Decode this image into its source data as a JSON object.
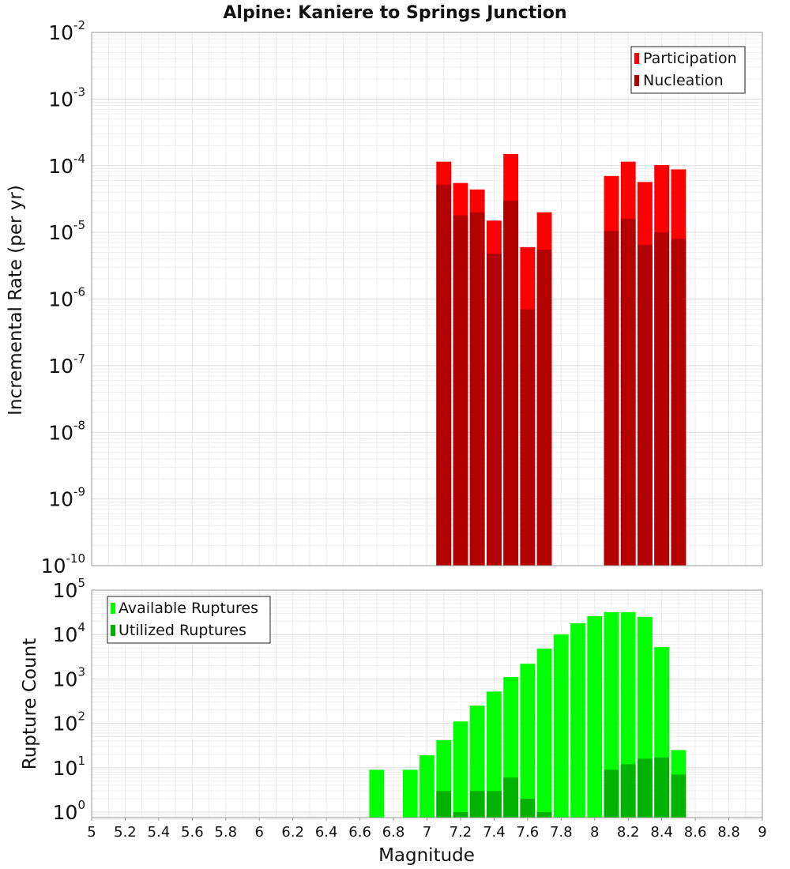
{
  "chart_data": [
    {
      "type": "bar",
      "title": "Alpine: Kaniere to Springs Junction",
      "xlabel": "Magnitude",
      "ylabel": "Incremental Rate (per yr)",
      "yscale": "log",
      "ylim": [
        1e-10,
        0.01
      ],
      "xlim": [
        5,
        9
      ],
      "grid": true,
      "legend_position": "top-right",
      "y_tick_exponents": [
        "-10",
        "-9",
        "-8",
        "-7",
        "-6",
        "-5",
        "-4",
        "-3",
        "-2"
      ],
      "bin_width": 0.1,
      "series": [
        {
          "name": "Participation",
          "color": "#ff0000",
          "x": [
            7.1,
            7.2,
            7.3,
            7.4,
            7.5,
            7.6,
            7.7,
            8.1,
            8.2,
            8.3,
            8.4,
            8.5
          ],
          "values": [
            0.000115,
            5.5e-05,
            4.4e-05,
            1.5e-05,
            0.00015,
            6e-06,
            2e-05,
            7e-05,
            0.000115,
            5.7e-05,
            0.000102,
            8.8e-05
          ]
        },
        {
          "name": "Nucleation",
          "color": "#b30000",
          "x": [
            7.1,
            7.2,
            7.3,
            7.4,
            7.5,
            7.6,
            7.7,
            8.1,
            8.2,
            8.3,
            8.4,
            8.5
          ],
          "values": [
            5.2e-05,
            1.8e-05,
            2e-05,
            4.8e-06,
            3e-05,
            7e-07,
            5.5e-06,
            1.05e-05,
            1.6e-05,
            6.5e-06,
            1e-05,
            8e-06
          ]
        }
      ]
    },
    {
      "type": "bar",
      "xlabel": "Magnitude",
      "ylabel": "Rupture Count",
      "yscale": "log",
      "ylim": [
        0.75,
        100000.0
      ],
      "xlim": [
        5,
        9
      ],
      "grid": true,
      "legend_position": "top-left",
      "x_ticks": [
        "5",
        "5.2",
        "5.4",
        "5.6",
        "5.8",
        "6",
        "6.2",
        "6.4",
        "6.6",
        "6.8",
        "7",
        "7.2",
        "7.4",
        "7.6",
        "7.8",
        "8",
        "8.2",
        "8.4",
        "8.6",
        "8.8",
        "9"
      ],
      "y_tick_exponents": [
        "0",
        "1",
        "2",
        "3",
        "4",
        "5"
      ],
      "bin_width": 0.1,
      "series": [
        {
          "name": "Available Ruptures",
          "color": "#00ff00",
          "x": [
            6.7,
            6.9,
            7.0,
            7.1,
            7.2,
            7.3,
            7.4,
            7.5,
            7.6,
            7.7,
            7.8,
            7.9,
            8.0,
            8.1,
            8.2,
            8.3,
            8.4,
            8.5
          ],
          "values": [
            9,
            9,
            19,
            42,
            110,
            250,
            520,
            1100,
            2200,
            4800,
            10000,
            18000,
            26000,
            32000,
            32000,
            25000,
            5200,
            25
          ]
        },
        {
          "name": "Utilized Ruptures",
          "color": "#00b300",
          "x": [
            7.1,
            7.2,
            7.3,
            7.4,
            7.5,
            7.6,
            7.7,
            8.1,
            8.2,
            8.3,
            8.4,
            8.5
          ],
          "values": [
            3,
            1,
            3,
            3,
            6,
            2,
            1,
            9,
            12,
            16,
            17,
            7
          ]
        }
      ]
    }
  ]
}
